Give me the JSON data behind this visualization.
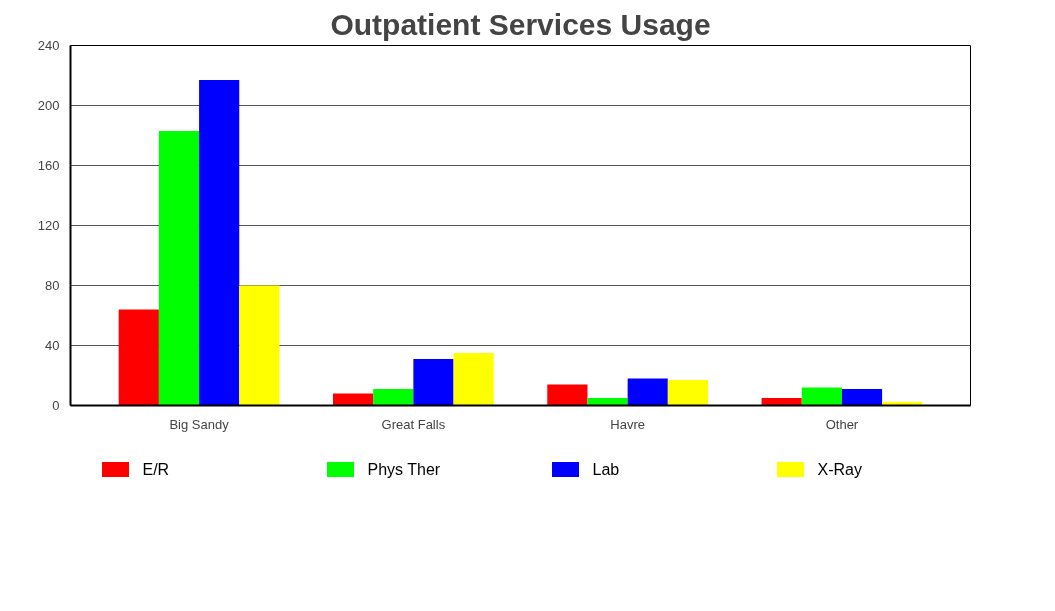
{
  "chart_data": {
    "type": "bar",
    "title": "Outpatient Services Usage",
    "categories": [
      "Big Sandy",
      "Great Falls",
      "Havre",
      "Other"
    ],
    "series": [
      {
        "name": "E/R",
        "color": "#ff0000",
        "values": [
          64,
          8,
          14,
          5
        ]
      },
      {
        "name": "Phys Ther",
        "color": "#00ff00",
        "values": [
          183,
          11,
          5,
          12
        ]
      },
      {
        "name": "Lab",
        "color": "#0000ff",
        "values": [
          217,
          31,
          18,
          11
        ]
      },
      {
        "name": "X-Ray",
        "color": "#ffff00",
        "values": [
          80,
          35,
          17,
          2.5
        ]
      }
    ],
    "ylim": [
      0,
      240
    ],
    "yticks": [
      0,
      40,
      80,
      120,
      160,
      200,
      240
    ],
    "grid": "y",
    "legend": "bottom"
  }
}
